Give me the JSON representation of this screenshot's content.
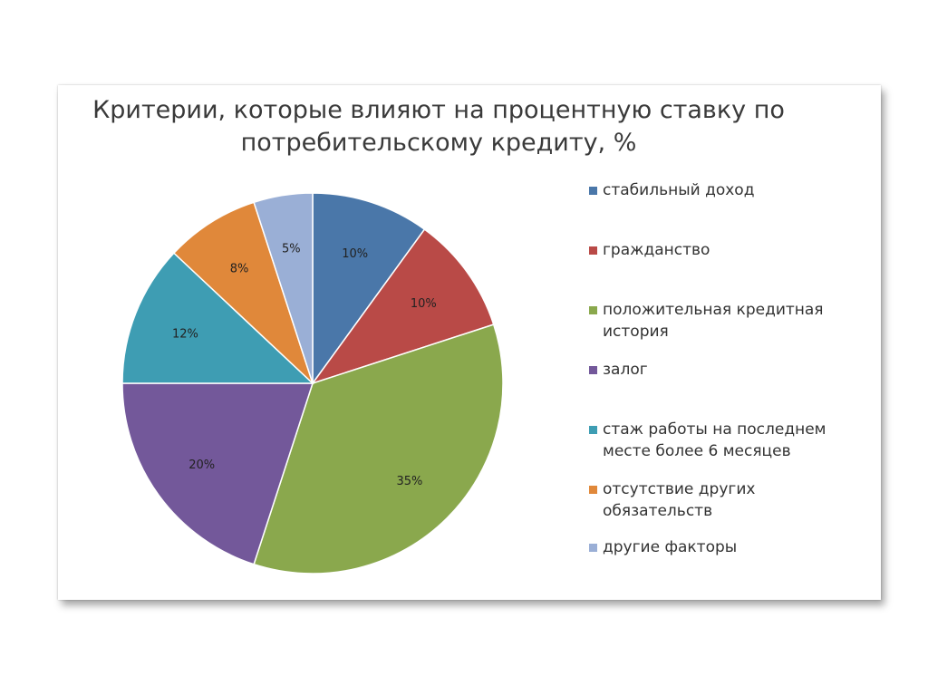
{
  "chart_data": {
    "type": "pie",
    "title": "Критерии, которые влияют на процентную ставку по потребительскому кредиту, %",
    "title_lines": [
      "Критерии, которые влияют на процентную ставку по",
      "потребительскому кредиту, %"
    ],
    "legend_position": "right",
    "slices": [
      {
        "label": "стабильный  доход",
        "value": 10,
        "display": "10%",
        "color": "#4a77a9"
      },
      {
        "label": "гражданство",
        "value": 10,
        "display": "10%",
        "color": "#b94a47"
      },
      {
        "label": "положительная  кредитная история",
        "value": 35,
        "display": "35%",
        "color": "#8aa84d"
      },
      {
        "label": "залог",
        "value": 20,
        "display": "20%",
        "color": "#73589a"
      },
      {
        "label": "стаж  работы  на  последнем месте  более  6  месяцев",
        "value": 12,
        "display": "12%",
        "color": "#3e9db3"
      },
      {
        "label": "отсутствие  других обязательств",
        "value": 8,
        "display": "8%",
        "color": "#e0883a"
      },
      {
        "label": "другие  факторы",
        "value": 5,
        "display": "5%",
        "color": "#9aafd6"
      }
    ]
  }
}
